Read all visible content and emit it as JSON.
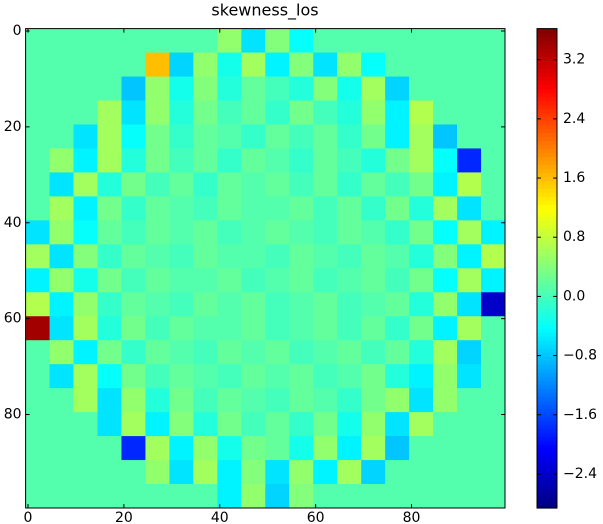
{
  "chart_data": {
    "type": "heatmap",
    "title": "skewness_los",
    "colormap": "jet",
    "xlim": [
      -0.5,
      99.5
    ],
    "ylim": [
      99.5,
      -0.5
    ],
    "xticks": [
      0,
      20,
      40,
      60,
      80
    ],
    "yticks": [
      0,
      20,
      40,
      60,
      80
    ],
    "z": [
      [
        0.1,
        0.1,
        0.1,
        0.1,
        0.1,
        0.1,
        0.1,
        0.1,
        0.5,
        -0.6,
        0.4,
        -0.4,
        0.1,
        0.1,
        0.1,
        0.1,
        0.1,
        0.1,
        0.1,
        0.1
      ],
      [
        0.1,
        0.1,
        0.1,
        0.1,
        0.1,
        1.6,
        -0.7,
        0.5,
        -0.3,
        0.6,
        -0.5,
        0.4,
        -0.6,
        0.5,
        -0.4,
        0.1,
        0.1,
        0.1,
        0.1,
        0.1
      ],
      [
        0.1,
        0.1,
        0.1,
        0.1,
        -0.8,
        0.5,
        -0.3,
        0.4,
        -0.2,
        0.2,
        0.0,
        -0.2,
        0.4,
        -0.3,
        0.6,
        -0.7,
        0.1,
        0.1,
        0.1,
        0.1
      ],
      [
        0.1,
        0.1,
        0.1,
        0.6,
        -0.6,
        0.5,
        -0.2,
        0.3,
        0.0,
        0.2,
        -0.1,
        0.3,
        0.0,
        -0.2,
        0.5,
        -0.5,
        0.7,
        0.1,
        0.1,
        0.1
      ],
      [
        0.1,
        0.1,
        -0.6,
        0.6,
        -0.4,
        0.3,
        -0.1,
        0.2,
        0.1,
        -0.1,
        0.2,
        0.0,
        0.2,
        -0.1,
        0.3,
        -0.5,
        0.6,
        -0.8,
        0.1,
        0.1
      ],
      [
        0.1,
        0.5,
        -0.5,
        0.6,
        -0.2,
        0.3,
        0.0,
        0.2,
        -0.1,
        0.2,
        0.1,
        -0.1,
        0.2,
        0.0,
        -0.2,
        0.3,
        0.6,
        -0.4,
        -1.8,
        0.1
      ],
      [
        0.1,
        -0.6,
        0.6,
        -0.2,
        0.3,
        0.0,
        0.2,
        -0.1,
        0.2,
        0.1,
        0.2,
        0.0,
        0.2,
        -0.1,
        0.2,
        0.0,
        0.3,
        -0.5,
        0.7,
        0.1
      ],
      [
        0.1,
        0.6,
        -0.5,
        0.3,
        -0.1,
        0.2,
        0.1,
        0.0,
        0.2,
        0.1,
        0.1,
        0.2,
        0.0,
        0.2,
        -0.1,
        0.3,
        -0.2,
        0.6,
        -0.6,
        0.1
      ],
      [
        -0.6,
        0.5,
        -0.4,
        0.2,
        0.0,
        0.2,
        0.1,
        0.2,
        0.0,
        0.1,
        0.2,
        0.1,
        0.0,
        0.2,
        0.1,
        -0.1,
        0.3,
        -0.4,
        0.6,
        -0.5
      ],
      [
        0.6,
        -0.6,
        0.4,
        -0.1,
        0.2,
        0.1,
        0.0,
        0.2,
        0.1,
        0.1,
        0.0,
        0.2,
        0.1,
        0.0,
        0.2,
        0.1,
        -0.2,
        0.4,
        -0.5,
        0.7
      ],
      [
        -0.5,
        0.5,
        -0.3,
        0.3,
        0.0,
        0.2,
        0.1,
        0.1,
        0.2,
        0.0,
        0.1,
        0.2,
        0.0,
        0.1,
        0.2,
        0.0,
        0.3,
        -0.4,
        0.6,
        -0.5
      ],
      [
        0.7,
        -0.5,
        0.5,
        -0.1,
        0.2,
        0.1,
        0.0,
        0.2,
        0.1,
        0.2,
        0.0,
        0.1,
        0.2,
        0.0,
        0.1,
        0.2,
        -0.2,
        0.5,
        -0.6,
        -2.4
      ],
      [
        3.4,
        -0.6,
        0.6,
        -0.2,
        0.3,
        0.0,
        0.2,
        0.1,
        0.1,
        0.2,
        0.0,
        0.1,
        0.2,
        0.0,
        0.2,
        -0.1,
        0.3,
        -0.5,
        0.6,
        0.1
      ],
      [
        0.1,
        0.5,
        -0.5,
        0.3,
        -0.1,
        0.2,
        0.1,
        0.0,
        0.2,
        0.1,
        0.2,
        0.0,
        0.1,
        0.2,
        0.0,
        0.2,
        -0.2,
        0.6,
        -0.7,
        0.1
      ],
      [
        0.1,
        -0.6,
        0.6,
        -0.4,
        0.3,
        0.0,
        0.2,
        0.1,
        0.0,
        0.2,
        0.1,
        0.2,
        0.0,
        0.1,
        0.3,
        -0.2,
        -0.5,
        0.5,
        -0.6,
        0.1
      ],
      [
        0.1,
        0.1,
        0.6,
        -0.6,
        0.5,
        -0.2,
        0.3,
        0.0,
        0.2,
        0.1,
        0.0,
        0.2,
        0.1,
        -0.1,
        0.3,
        0.5,
        -0.6,
        0.5,
        0.1,
        0.1
      ],
      [
        0.1,
        0.1,
        0.1,
        -0.6,
        0.6,
        -0.5,
        0.4,
        -0.2,
        0.3,
        0.0,
        0.2,
        -0.1,
        0.3,
        -0.3,
        0.5,
        -0.6,
        0.6,
        0.1,
        0.1,
        0.1
      ],
      [
        0.1,
        0.1,
        0.1,
        0.1,
        -1.8,
        0.6,
        -0.5,
        0.5,
        -0.3,
        0.3,
        0.2,
        -0.3,
        0.5,
        -0.5,
        0.6,
        -0.8,
        0.1,
        0.1,
        0.1,
        0.1
      ],
      [
        0.1,
        0.1,
        0.1,
        0.1,
        0.1,
        0.5,
        -0.6,
        0.6,
        -0.5,
        0.4,
        -0.6,
        0.5,
        -0.5,
        0.6,
        -0.7,
        0.1,
        0.1,
        0.1,
        0.1,
        0.1
      ],
      [
        0.1,
        0.1,
        0.1,
        0.1,
        0.1,
        0.1,
        0.1,
        0.1,
        -0.5,
        0.5,
        -0.7,
        0.4,
        0.1,
        0.1,
        0.1,
        0.1,
        0.1,
        0.1,
        0.1,
        0.1
      ]
    ],
    "clim": [
      -2.86,
      3.62
    ],
    "cticks": [
      {
        "value": -2.4,
        "label": "−2.4"
      },
      {
        "value": -1.6,
        "label": "−1.6"
      },
      {
        "value": -0.8,
        "label": "−0.8"
      },
      {
        "value": 0,
        "label": "0.0"
      },
      0.8,
      1.6,
      2.4,
      3.2
    ]
  }
}
